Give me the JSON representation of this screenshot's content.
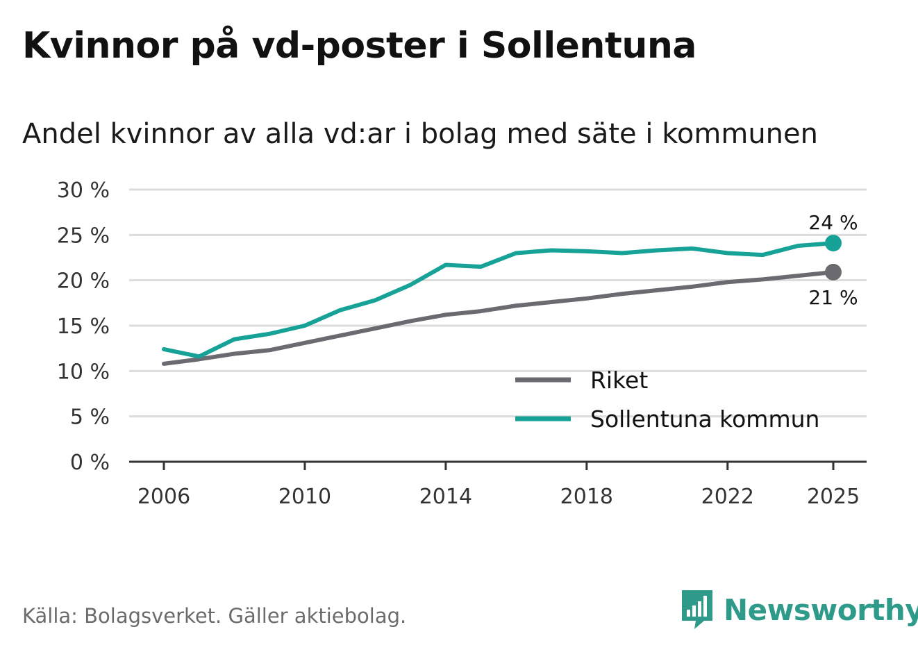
{
  "title": "Kvinnor på vd-poster i Sollentuna",
  "subtitle": "Andel kvinnor av alla vd:ar i bolag med säte i kommunen",
  "source": "Källa: Bolagsverket. Gäller aktiebolag.",
  "brand": {
    "name": "Newsworthy",
    "icon": "newsworthy-logo-icon",
    "color": "#2d9a8a"
  },
  "chart_data": {
    "type": "line",
    "title": "Kvinnor på vd-poster i Sollentuna",
    "xlabel": "",
    "ylabel": "",
    "x": [
      2006,
      2007,
      2008,
      2009,
      2010,
      2011,
      2012,
      2013,
      2014,
      2015,
      2016,
      2017,
      2018,
      2019,
      2020,
      2021,
      2022,
      2023,
      2024,
      2025
    ],
    "xlim": [
      2006,
      2025
    ],
    "ylim": [
      0,
      30
    ],
    "grid": true,
    "x_ticks": [
      2006,
      2010,
      2014,
      2018,
      2022,
      2025
    ],
    "x_tick_labels": [
      "2006",
      "2010",
      "2014",
      "2018",
      "2022",
      "2025"
    ],
    "y_ticks": [
      0,
      5,
      10,
      15,
      20,
      25,
      30
    ],
    "y_tick_labels": [
      "0 %",
      "5 %",
      "10 %",
      "15 %",
      "20 %",
      "25 %",
      "30 %"
    ],
    "legend_position": "bottom-right",
    "series": [
      {
        "name": "Riket",
        "color": "#6b6a70",
        "values": [
          10.8,
          11.3,
          11.9,
          12.3,
          13.1,
          13.9,
          14.7,
          15.5,
          16.2,
          16.6,
          17.2,
          17.6,
          18.0,
          18.5,
          18.9,
          19.3,
          19.8,
          20.1,
          20.5,
          20.9
        ],
        "end_label": "21 %"
      },
      {
        "name": "Sollentuna kommun",
        "color": "#16a297",
        "values": [
          12.4,
          11.6,
          13.5,
          14.1,
          15.0,
          16.7,
          17.8,
          19.5,
          21.7,
          21.5,
          23.0,
          23.3,
          23.2,
          23.0,
          23.3,
          23.5,
          23.0,
          22.8,
          23.8,
          24.1
        ],
        "end_label": "24 %"
      }
    ]
  }
}
